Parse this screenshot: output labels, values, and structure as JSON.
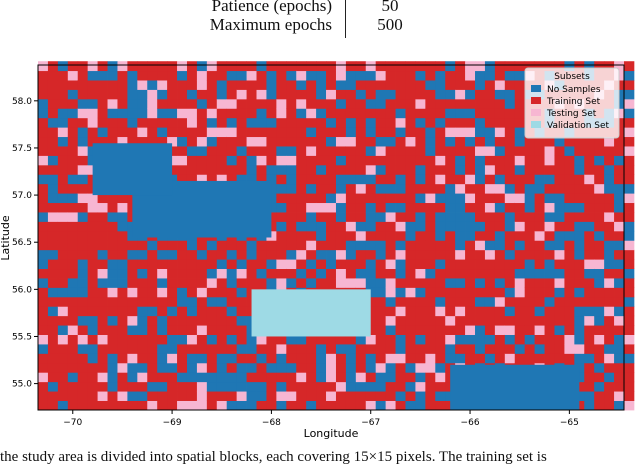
{
  "hyperparams": [
    {
      "name": "Patience (epochs)",
      "value": "50"
    },
    {
      "name": "Maximum epochs",
      "value": "500"
    }
  ],
  "chart_data": {
    "type": "heatmap",
    "xlabel": "Longitude",
    "ylabel": "Latitude",
    "xlim": [
      -70.35,
      -64.45
    ],
    "ylim": [
      54.72,
      58.38
    ],
    "xticks": [
      -70,
      -69,
      -68,
      -67,
      -66,
      -65
    ],
    "yticks": [
      55.0,
      55.5,
      56.0,
      56.5,
      57.0,
      57.5,
      58.0
    ],
    "grid": false,
    "legend": {
      "title": "Subsets",
      "placement": "top-right",
      "entries": [
        {
          "label": "No Samples",
          "color": "#1f77b4"
        },
        {
          "label": "Training Set",
          "color": "#d62728"
        },
        {
          "label": "Testing Set",
          "color": "#f7b6d2"
        },
        {
          "label": "Validation Set",
          "color": "#9edae5"
        }
      ]
    },
    "cell_size_deg": 0.1,
    "regions": [
      {
        "subset": "Validation Set",
        "lon": [
          -68.2,
          -67.0
        ],
        "lat": [
          55.5,
          56.0
        ]
      },
      {
        "subset": "No Samples",
        "lon": [
          -69.4,
          -68.0
        ],
        "lat": [
          56.55,
          57.15
        ]
      },
      {
        "subset": "No Samples",
        "lon": [
          -69.8,
          -69.0
        ],
        "lat": [
          57.0,
          57.55
        ]
      },
      {
        "subset": "No Samples",
        "lon": [
          -66.2,
          -64.9
        ],
        "lat": [
          54.72,
          55.2
        ]
      }
    ],
    "approximate_mix": {
      "No Samples": 0.28,
      "Training Set": 0.6,
      "Testing Set": 0.12
    }
  },
  "caption": "the study area is divided into spatial blocks, each covering 15×15 pixels. The training set is"
}
